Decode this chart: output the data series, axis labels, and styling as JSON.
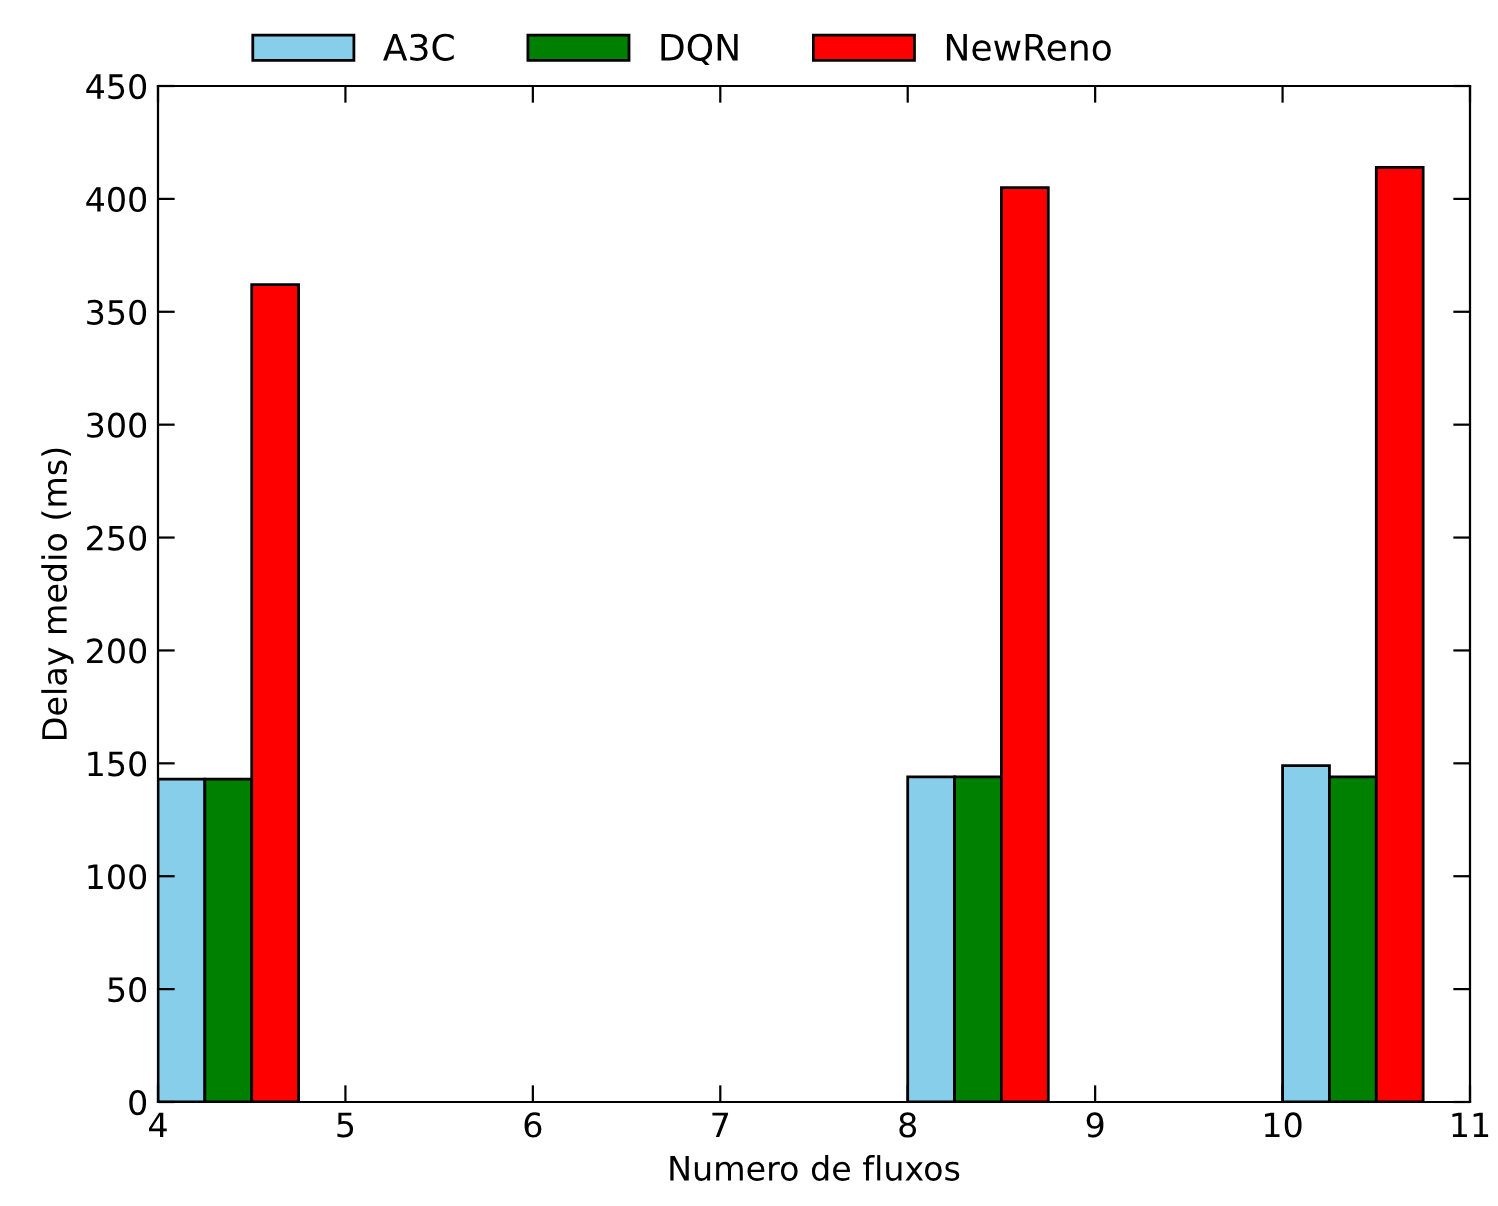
{
  "chart_data": {
    "type": "bar",
    "xlabel": "Numero de fluxos",
    "ylabel": "Delay medio (ms)",
    "series": [
      {
        "name": "A3C",
        "color": "#87ceeb",
        "x": [
          4.125,
          8.125,
          10.125
        ],
        "values": [
          143,
          144,
          149
        ]
      },
      {
        "name": "DQN",
        "color": "#008000",
        "x": [
          4.375,
          8.375,
          10.375
        ],
        "values": [
          143,
          144,
          144
        ]
      },
      {
        "name": "NewReno",
        "color": "#ff0000",
        "x": [
          4.625,
          8.625,
          10.625
        ],
        "values": [
          362,
          405,
          414
        ]
      }
    ],
    "xlim": [
      4,
      11
    ],
    "xticks": [
      4,
      5,
      6,
      7,
      8,
      9,
      10,
      11
    ],
    "ylim": [
      0,
      450
    ],
    "yticks": [
      0,
      50,
      100,
      150,
      200,
      250,
      300,
      350,
      400,
      450
    ],
    "grid": false,
    "legend": "top"
  }
}
